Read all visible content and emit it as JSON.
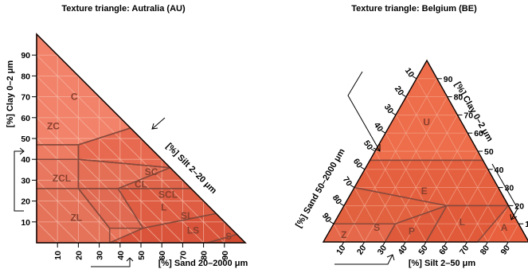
{
  "chart_data": [
    {
      "type": "ternary",
      "title": "Texture triangle: Autralia (AU)",
      "axes": {
        "clay": {
          "label": "[%] Clay 0–2 μm",
          "ticks": [
            10,
            20,
            30,
            40,
            50,
            60,
            70,
            80,
            90
          ]
        },
        "silt": {
          "label": "[%] Silt 2–20 μm"
        },
        "sand": {
          "label": "[%] Sand 20–2000 μm",
          "ticks": [
            10,
            20,
            30,
            40,
            50,
            60,
            70,
            80,
            90
          ]
        }
      },
      "regions": [
        {
          "label": "C",
          "poly": [
            [
              100,
              0,
              0
            ],
            [
              47,
              53,
              0
            ],
            [
              47,
              33,
              20
            ],
            [
              55,
              0,
              45
            ]
          ]
        },
        {
          "label": "ZC",
          "poly": [
            [
              47,
              53,
              0
            ],
            [
              40,
              60,
              0
            ],
            [
              40,
              40,
              20
            ],
            [
              47,
              33,
              20
            ]
          ]
        },
        {
          "label": "ZCL",
          "poly": [
            [
              40,
              60,
              0
            ],
            [
              26,
              74,
              0
            ],
            [
              26,
              54,
              20
            ],
            [
              40,
              40,
              20
            ]
          ]
        },
        {
          "label": "ZL",
          "poly": [
            [
              26,
              74,
              0
            ],
            [
              0,
              100,
              0
            ],
            [
              0,
              65,
              35
            ],
            [
              7,
              58,
              35
            ],
            [
              26,
              54,
              20
            ]
          ]
        },
        {
          "label": "SC",
          "poly": [
            [
              55,
              0,
              45
            ],
            [
              47,
              33,
              20
            ],
            [
              40,
              40,
              20
            ],
            [
              36,
              0,
              64
            ]
          ]
        },
        {
          "label": "CL",
          "poly": [
            [
              40,
              40,
              20
            ],
            [
              26,
              54,
              20
            ],
            [
              26,
              35,
              39
            ],
            [
              36,
              0,
              64
            ]
          ]
        },
        {
          "label": "SCL",
          "poly": [
            [
              36,
              0,
              64
            ],
            [
              26,
              35,
              39
            ],
            [
              26,
              0,
              74
            ]
          ]
        },
        {
          "label": "L",
          "poly": [
            [
              26,
              54,
              20
            ],
            [
              7,
              58,
              35
            ],
            [
              7,
              42,
              51
            ],
            [
              26,
              35,
              39
            ]
          ]
        },
        {
          "label": "SL",
          "poly": [
            [
              26,
              0,
              74
            ],
            [
              26,
              35,
              39
            ],
            [
              7,
              42,
              51
            ],
            [
              14,
              0,
              86
            ]
          ]
        },
        {
          "label": "LS",
          "poly": [
            [
              14,
              0,
              86
            ],
            [
              7,
              42,
              51
            ],
            [
              0,
              65,
              35
            ],
            [
              0,
              18,
              82
            ],
            [
              4,
              0,
              96
            ]
          ]
        },
        {
          "label": "S",
          "poly": [
            [
              4,
              0,
              96
            ],
            [
              0,
              18,
              82
            ],
            [
              0,
              0,
              100
            ]
          ]
        }
      ]
    },
    {
      "type": "ternary",
      "title": "Texture triangle: Belgium (BE)",
      "axes": {
        "clay": {
          "label": "[%] Clay 0–2 μm",
          "ticks": [
            10,
            20,
            30,
            40,
            50,
            60,
            70,
            80,
            90
          ]
        },
        "silt": {
          "label": "[%] Silt 2–50 μm",
          "ticks": [
            10,
            20,
            30,
            40,
            50,
            60,
            70,
            80,
            90
          ]
        },
        "sand": {
          "label": "[%] Sand 50–2000 μm",
          "ticks": [
            10,
            20,
            30,
            40,
            50,
            60,
            70,
            80,
            90
          ]
        }
      },
      "regions": [
        {
          "label": "U",
          "poly": [
            [
              100,
              0,
              0
            ],
            [
              45,
              55,
              0
            ],
            [
              45,
              0,
              55
            ]
          ]
        },
        {
          "label": "E",
          "poly": [
            [
              45,
              55,
              0
            ],
            [
              45,
              0,
              55
            ],
            [
              30,
              0,
              70
            ],
            [
              20,
              50,
              30
            ],
            [
              20,
              80,
              0
            ]
          ]
        },
        {
          "label": "A",
          "poly": [
            [
              20,
              80,
              0
            ],
            [
              30,
              70,
              0
            ],
            [
              0,
              100,
              0
            ]
          ]
        },
        {
          "label": "L",
          "poly": [
            [
              20,
              50,
              30
            ],
            [
              10,
              50,
              40
            ],
            [
              0,
              50,
              50
            ],
            [
              0,
              75,
              25
            ],
            [
              20,
              80,
              0
            ]
          ]
        },
        {
          "label": "P",
          "poly": [
            [
              20,
              50,
              30
            ],
            [
              0,
              50,
              50
            ],
            [
              0,
              30,
              70
            ],
            [
              10,
              30,
              60
            ]
          ]
        },
        {
          "label": "S",
          "poly": [
            [
              30,
              0,
              70
            ],
            [
              20,
              50,
              30
            ],
            [
              10,
              30,
              60
            ],
            [
              10,
              0,
              90
            ]
          ]
        },
        {
          "label": "Z",
          "poly": [
            [
              10,
              0,
              90
            ],
            [
              10,
              30,
              60
            ],
            [
              0,
              30,
              70
            ],
            [
              0,
              0,
              100
            ]
          ]
        }
      ]
    }
  ]
}
